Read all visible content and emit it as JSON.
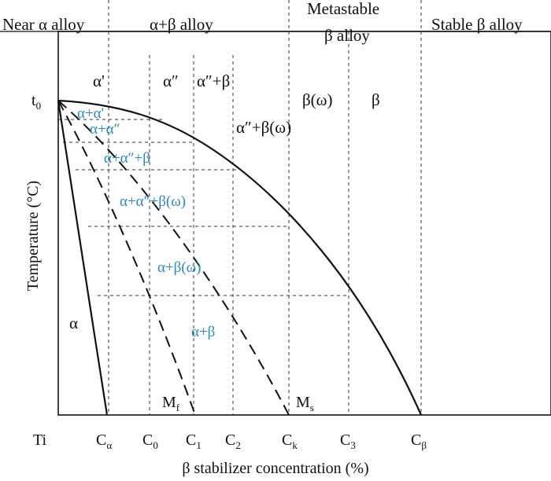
{
  "headers": {
    "near_alpha": "Near α alloy",
    "alpha_beta": "α+β alloy",
    "metastable_line1": "Metastable",
    "metastable_line2": "β alloy",
    "stable_beta": "Stable β alloy"
  },
  "phase_labels": {
    "alpha_prime": "α'",
    "alpha_dprime": "α″",
    "alpha_dprime_beta": "α″+β",
    "beta_omega": "β(ω)",
    "beta": "β",
    "alpha_dprime_beta_omega": "α″+β(ω)",
    "alpha": "α"
  },
  "region_labels": {
    "a_aprime": "α+α'",
    "a_adprime": "α+α″",
    "a_adprime_b": "α+α″+β",
    "a_adprime_bw": "α+α″+β(ω)",
    "a_bw": "α+β(ω)",
    "a_b": "α+β"
  },
  "curve_labels": {
    "mf_main": "M",
    "mf_sub": "f",
    "ms_main": "M",
    "ms_sub": "s"
  },
  "axis": {
    "t0_main": "t",
    "t0_sub": "0",
    "ylabel": "Temperature (°C)",
    "xlabel": "β stabilizer concentration (%)",
    "origin": "Ti"
  },
  "ticks": [
    {
      "main": "C",
      "sub": "α"
    },
    {
      "main": "C",
      "sub": "0"
    },
    {
      "main": "C",
      "sub": "1"
    },
    {
      "main": "C",
      "sub": "2"
    },
    {
      "main": "C",
      "sub": "k"
    },
    {
      "main": "C",
      "sub": "3"
    },
    {
      "main": "C",
      "sub": "β"
    }
  ],
  "colors": {
    "region_label": "#2b86c8",
    "line": "#111111"
  }
}
